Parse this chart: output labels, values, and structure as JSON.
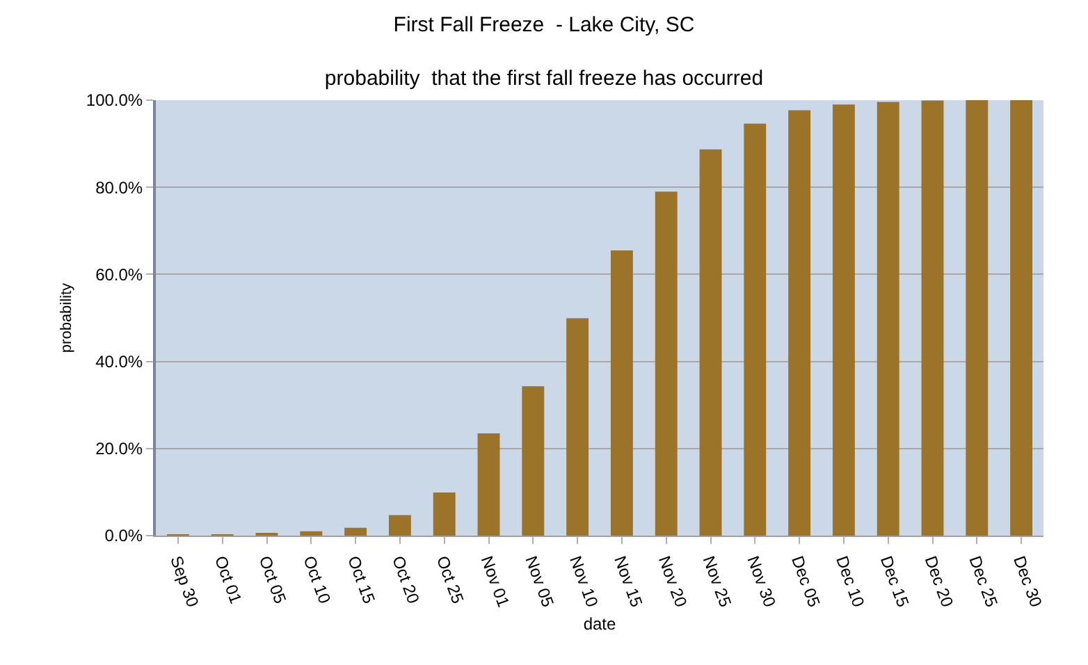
{
  "chart_data": {
    "type": "bar",
    "title": "First Fall Freeze  - Lake City, SC",
    "subtitle": "probability  that the first fall freeze has occurred",
    "xlabel": "date",
    "ylabel": "probability",
    "categories": [
      "Sep 30",
      "Oct 01",
      "Oct 05",
      "Oct 10",
      "Oct 15",
      "Oct 20",
      "Oct 25",
      "Nov 01",
      "Nov 05",
      "Nov 10",
      "Nov 15",
      "Nov 20",
      "Nov 25",
      "Nov 30",
      "Dec 05",
      "Dec 10",
      "Dec 15",
      "Dec 20",
      "Dec 25",
      "Dec 30"
    ],
    "values": [
      0.3,
      0.3,
      0.5,
      1.0,
      1.8,
      4.7,
      9.9,
      23.5,
      34.3,
      49.9,
      65.5,
      79.0,
      88.7,
      94.6,
      97.7,
      99.0,
      99.6,
      99.9,
      100,
      100
    ],
    "color": "#9c7429",
    "ylim": [
      0,
      100
    ],
    "yticks": [
      {
        "value": 0,
        "label": "0.0%"
      },
      {
        "value": 20,
        "label": "20.0%"
      },
      {
        "value": 40,
        "label": "40.0%"
      },
      {
        "value": 60,
        "label": "60.0%"
      },
      {
        "value": 80,
        "label": "80.0%"
      },
      {
        "value": 100,
        "label": "100.0%"
      }
    ],
    "grid": "y"
  }
}
